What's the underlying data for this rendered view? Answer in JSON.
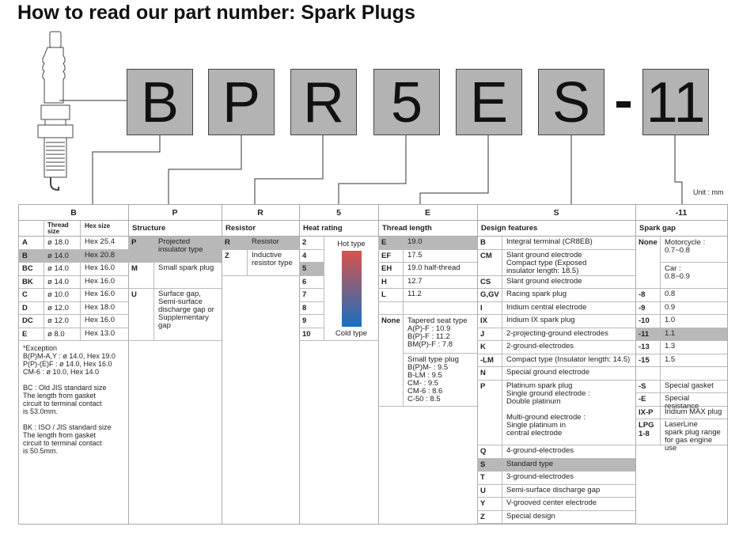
{
  "title": "How to read our part number: Spark Plugs",
  "part_number": {
    "chars": [
      "B",
      "P",
      "R",
      "5",
      "E",
      "S",
      "11"
    ],
    "separator": "-"
  },
  "unit": "Unit : mm",
  "colors": {
    "highlight": "#b8b8b8",
    "box": "#b3b3b3",
    "hot": "#d9534a",
    "cold": "#1a6fc0"
  },
  "B": {
    "header": "B",
    "sub": [
      "Thread size",
      "Hex size"
    ],
    "rows": [
      {
        "code": "A",
        "thread": "ø 18.0",
        "hex": "Hex 25.4"
      },
      {
        "code": "B",
        "thread": "ø 14.0",
        "hex": "Hex 20.8"
      },
      {
        "code": "BC",
        "thread": "ø 14.0",
        "hex": "Hex 16.0"
      },
      {
        "code": "BK",
        "thread": "ø 14.0",
        "hex": "Hex 16.0"
      },
      {
        "code": "C",
        "thread": "ø 10.0",
        "hex": "Hex 16.0"
      },
      {
        "code": "D",
        "thread": "ø 12.0",
        "hex": "Hex 18.0"
      },
      {
        "code": "DC",
        "thread": "ø 12.0",
        "hex": "Hex 16.0"
      },
      {
        "code": "E",
        "thread": "ø 8.0",
        "hex": "Hex 13.0"
      }
    ],
    "notes": [
      "*Exception\n B(P)M-A,Y : ø 14.0, Hex 19.0\n P(P)-(E)F : ø 14.0, Hex 16.0\n CM-6 : ø 10.0, Hex 14.0",
      "BC : Old JIS standard size\n       The length from gasket\n       circuit to terminal contact\n       is 53.0mm.",
      "BK : ISO / JIS standard size\n       The length from gasket\n       circuit to terminal contact\n       is 50.5mm."
    ]
  },
  "P": {
    "header": "P",
    "sub": "Structure",
    "rows": [
      {
        "code": "P",
        "desc": "Projected insulator type"
      },
      {
        "code": "M",
        "desc": "Small spark plug"
      },
      {
        "code": "U",
        "desc": "Surface gap, Semi-surface discharge gap or Supplementary gap"
      }
    ]
  },
  "R": {
    "header": "R",
    "sub": "Resistor",
    "rows": [
      {
        "code": "R",
        "desc": "Resistor"
      },
      {
        "code": "Z",
        "desc": "Inductive resistor type"
      }
    ]
  },
  "H": {
    "header": "5",
    "sub": "Heat rating",
    "codes": [
      "2",
      "4",
      "5",
      "6",
      "7",
      "8",
      "9",
      "10"
    ],
    "hot": "Hot type",
    "cold": "Cold type"
  },
  "E": {
    "header": "E",
    "sub": "Thread length",
    "rows": [
      {
        "code": "E",
        "desc": "19.0"
      },
      {
        "code": "EF",
        "desc": "17.5"
      },
      {
        "code": "EH",
        "desc": "19.0 half-thread"
      },
      {
        "code": "H",
        "desc": "12.7"
      },
      {
        "code": "L",
        "desc": "11.2"
      },
      {
        "code": "None",
        "desc": "Tapered seat type\nA(P)-F : 10.9\nB(P)-F : 11.2\nBM(P)-F : 7.8",
        "desc2": "Small type plug\nB(P)M- : 9.5\nB-LM : 9.5\nCM- : 9.5\nCM-6 : 8.6\nC-50 : 8.5"
      }
    ]
  },
  "S": {
    "header": "S",
    "sub": "Design features",
    "rows": [
      {
        "code": "B",
        "desc": "Integral terminal (CR8EB)"
      },
      {
        "code": "CM",
        "desc": "Slant ground electrode\nCompact type (Exposed\ninsulator length: 18.5)"
      },
      {
        "code": "CS",
        "desc": "Slant ground electrode"
      },
      {
        "code": "G,GV",
        "desc": "Racing spark plug"
      },
      {
        "code": "I",
        "desc": "Iridium central electrode"
      },
      {
        "code": "IX",
        "desc": "Iridium IX spark plug"
      },
      {
        "code": "J",
        "desc": "2-projecting-ground electrodes"
      },
      {
        "code": "K",
        "desc": "2-ground-electrodes"
      },
      {
        "code": "-LM",
        "desc": "Compact type (Insulator length: 14.5)"
      },
      {
        "code": "N",
        "desc": "Special ground electrode"
      },
      {
        "code": "P",
        "desc": "Platinum spark plug\n   Single ground electrode :\n   Double platinum\n\n   Multi-ground electrode :\n   Single platinum in\n   central electrode"
      },
      {
        "code": "Q",
        "desc": "4-ground-electrodes"
      },
      {
        "code": "S",
        "desc": "Standard type"
      },
      {
        "code": "T",
        "desc": "3-ground-electrodes"
      },
      {
        "code": "U",
        "desc": "Semi-surface discharge gap"
      },
      {
        "code": "Y",
        "desc": "V-grooved center electrode"
      },
      {
        "code": "Z",
        "desc": "Special design"
      }
    ]
  },
  "G": {
    "header": "-11",
    "sub": "Spark gap",
    "rows": [
      {
        "code": "None",
        "desc": "Motorcycle :\n0.7~0.8",
        "desc2": "Car :\n0.8~0.9"
      },
      {
        "code": "-8",
        "desc": "0.8"
      },
      {
        "code": "-9",
        "desc": "0.9"
      },
      {
        "code": "-10",
        "desc": "1.0"
      },
      {
        "code": "-11",
        "desc": "1.1"
      },
      {
        "code": "-13",
        "desc": "1.3"
      },
      {
        "code": "-15",
        "desc": "1.5"
      },
      {
        "code": "-S",
        "desc": "Special gasket"
      },
      {
        "code": "-E",
        "desc": "Special resistance"
      },
      {
        "code": "IX-P",
        "desc": "Iridium MAX plug"
      },
      {
        "code": "LPG\n1-8",
        "desc": "LaserLine\nspark plug range\nfor gas engine use"
      }
    ]
  }
}
